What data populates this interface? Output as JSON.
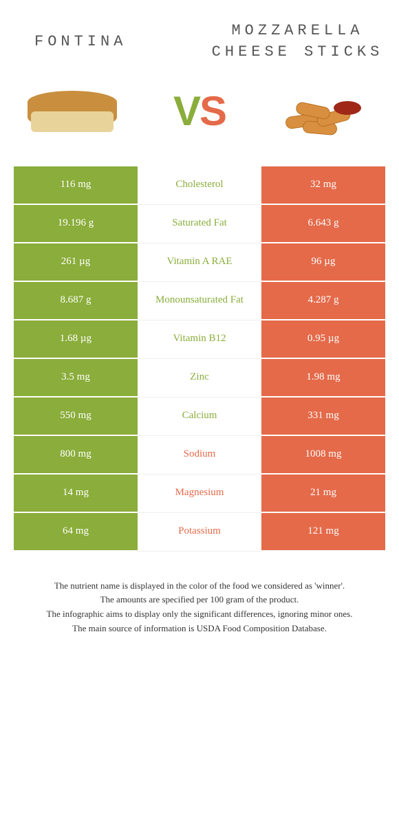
{
  "left": {
    "title": "Fontina",
    "color": "#8aad3b"
  },
  "right": {
    "title": "Mozzarella cheese sticks",
    "color": "#e46a4a"
  },
  "vs": {
    "v": "V",
    "s": "S"
  },
  "rows": [
    {
      "left": "116 mg",
      "label": "Cholesterol",
      "right": "32 mg",
      "winner": "left"
    },
    {
      "left": "19.196 g",
      "label": "Saturated Fat",
      "right": "6.643 g",
      "winner": "left"
    },
    {
      "left": "261 µg",
      "label": "Vitamin A RAE",
      "right": "96 µg",
      "winner": "left"
    },
    {
      "left": "8.687 g",
      "label": "Monounsaturated Fat",
      "right": "4.287 g",
      "winner": "left"
    },
    {
      "left": "1.68 µg",
      "label": "Vitamin B12",
      "right": "0.95 µg",
      "winner": "left"
    },
    {
      "left": "3.5 mg",
      "label": "Zinc",
      "right": "1.98 mg",
      "winner": "left"
    },
    {
      "left": "550 mg",
      "label": "Calcium",
      "right": "331 mg",
      "winner": "left"
    },
    {
      "left": "800 mg",
      "label": "Sodium",
      "right": "1008 mg",
      "winner": "right"
    },
    {
      "left": "14 mg",
      "label": "Magnesium",
      "right": "21 mg",
      "winner": "right"
    },
    {
      "left": "64 mg",
      "label": "Potassium",
      "right": "121 mg",
      "winner": "right"
    }
  ],
  "footer": {
    "line1": "The nutrient name is displayed in the color of the food we considered as 'winner'.",
    "line2": "The amounts are specified per 100 gram of the product.",
    "line3": "The infographic aims to display only the significant differences, ignoring minor ones.",
    "line4": "The main source of information is USDA Food Composition Database."
  }
}
